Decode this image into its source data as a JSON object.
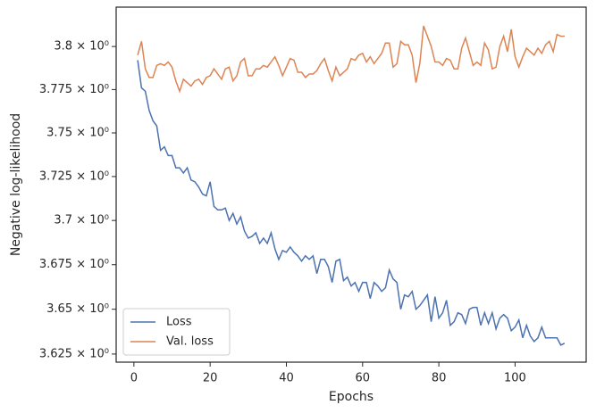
{
  "chart_data": {
    "type": "line",
    "xlabel": "Epochs",
    "ylabel": "Negative log-likelihood",
    "yscale": "log",
    "grid": false,
    "legend": "lower left",
    "xlim": [
      -4.65,
      118.65
    ],
    "xticks": [
      0,
      20,
      40,
      60,
      80,
      100
    ],
    "ylim": [
      3.6205,
      3.823
    ],
    "yticks": [
      {
        "value": 3.625,
        "label": "3.625 × 10⁰"
      },
      {
        "value": 3.65,
        "label": "3.65 × 10⁰"
      },
      {
        "value": 3.675,
        "label": "3.675 × 10⁰"
      },
      {
        "value": 3.7,
        "label": "3.7 × 10⁰"
      },
      {
        "value": 3.725,
        "label": "3.725 × 10⁰"
      },
      {
        "value": 3.75,
        "label": "3.75 × 10⁰"
      },
      {
        "value": 3.775,
        "label": "3.775 × 10⁰"
      },
      {
        "value": 3.8,
        "label": "3.8 × 10⁰"
      }
    ],
    "x": [
      1,
      2,
      3,
      4,
      5,
      6,
      7,
      8,
      9,
      10,
      11,
      12,
      13,
      14,
      15,
      16,
      17,
      18,
      19,
      20,
      21,
      22,
      23,
      24,
      25,
      26,
      27,
      28,
      29,
      30,
      31,
      32,
      33,
      34,
      35,
      36,
      37,
      38,
      39,
      40,
      41,
      42,
      43,
      44,
      45,
      46,
      47,
      48,
      49,
      50,
      51,
      52,
      53,
      54,
      55,
      56,
      57,
      58,
      59,
      60,
      61,
      62,
      63,
      64,
      65,
      66,
      67,
      68,
      69,
      70,
      71,
      72,
      73,
      74,
      75,
      76,
      77,
      78,
      79,
      80,
      81,
      82,
      83,
      84,
      85,
      86,
      87,
      88,
      89,
      90,
      91,
      92,
      93,
      94,
      95,
      96,
      97,
      98,
      99,
      100,
      101,
      102,
      103,
      104,
      105,
      106,
      107,
      108,
      109,
      110,
      111,
      112,
      113
    ],
    "series": [
      {
        "name": "Loss",
        "color": "#4c72b0",
        "values": [
          3.792,
          3.776,
          3.774,
          3.763,
          3.757,
          3.754,
          3.74,
          3.742,
          3.737,
          3.737,
          3.73,
          3.73,
          3.727,
          3.73,
          3.723,
          3.722,
          3.719,
          3.715,
          3.714,
          3.722,
          3.708,
          3.706,
          3.706,
          3.707,
          3.7,
          3.704,
          3.698,
          3.702,
          3.694,
          3.69,
          3.691,
          3.693,
          3.687,
          3.69,
          3.687,
          3.693,
          3.684,
          3.678,
          3.683,
          3.682,
          3.685,
          3.682,
          3.68,
          3.677,
          3.68,
          3.678,
          3.68,
          3.67,
          3.678,
          3.678,
          3.674,
          3.665,
          3.677,
          3.678,
          3.666,
          3.668,
          3.663,
          3.665,
          3.66,
          3.665,
          3.665,
          3.656,
          3.665,
          3.663,
          3.66,
          3.662,
          3.672,
          3.667,
          3.665,
          3.65,
          3.658,
          3.657,
          3.66,
          3.65,
          3.652,
          3.655,
          3.658,
          3.643,
          3.657,
          3.645,
          3.648,
          3.655,
          3.641,
          3.643,
          3.648,
          3.647,
          3.642,
          3.65,
          3.651,
          3.651,
          3.641,
          3.648,
          3.642,
          3.648,
          3.639,
          3.645,
          3.647,
          3.645,
          3.638,
          3.64,
          3.644,
          3.634,
          3.641,
          3.635,
          3.632,
          3.634,
          3.64,
          3.634,
          3.634,
          3.634,
          3.634,
          3.63,
          3.631
        ]
      },
      {
        "name": "Val. loss",
        "color": "#dd8452",
        "values": [
          3.795,
          3.803,
          3.787,
          3.782,
          3.782,
          3.789,
          3.79,
          3.789,
          3.791,
          3.788,
          3.78,
          3.774,
          3.781,
          3.779,
          3.777,
          3.78,
          3.781,
          3.778,
          3.782,
          3.783,
          3.787,
          3.784,
          3.781,
          3.787,
          3.788,
          3.78,
          3.783,
          3.791,
          3.793,
          3.783,
          3.783,
          3.787,
          3.787,
          3.789,
          3.788,
          3.791,
          3.794,
          3.789,
          3.783,
          3.788,
          3.793,
          3.792,
          3.785,
          3.785,
          3.782,
          3.784,
          3.784,
          3.786,
          3.79,
          3.793,
          3.786,
          3.78,
          3.788,
          3.783,
          3.785,
          3.787,
          3.793,
          3.792,
          3.795,
          3.796,
          3.791,
          3.794,
          3.79,
          3.793,
          3.796,
          3.802,
          3.802,
          3.788,
          3.79,
          3.803,
          3.801,
          3.801,
          3.795,
          3.779,
          3.79,
          3.812,
          3.806,
          3.8,
          3.791,
          3.791,
          3.789,
          3.793,
          3.792,
          3.787,
          3.787,
          3.799,
          3.805,
          3.797,
          3.789,
          3.791,
          3.789,
          3.802,
          3.798,
          3.787,
          3.788,
          3.8,
          3.806,
          3.797,
          3.81,
          3.794,
          3.788,
          3.794,
          3.799,
          3.797,
          3.795,
          3.799,
          3.796,
          3.801,
          3.803,
          3.797,
          3.807,
          3.806,
          3.806
        ]
      }
    ]
  }
}
